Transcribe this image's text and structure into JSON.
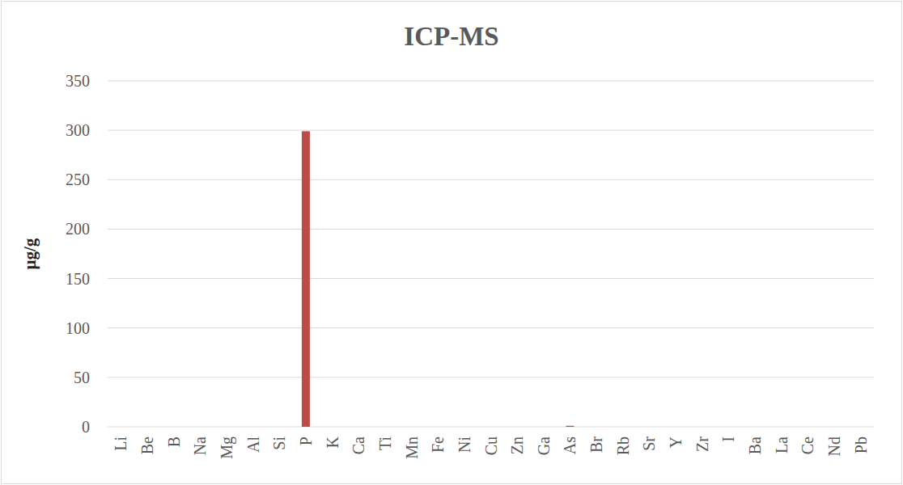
{
  "chart_data": {
    "type": "bar",
    "title": "ICP-MS",
    "y_label": "μg/g",
    "categories": [
      "Li",
      "Be",
      "B",
      "Na",
      "Mg",
      "Al",
      "Si",
      "P",
      "K",
      "Ca",
      "Ti",
      "Mn",
      "Fe",
      "Ni",
      "Cu",
      "Zn",
      "Ga",
      "As",
      "Br",
      "Rb",
      "Sr",
      "Y",
      "Zr",
      "I",
      "Ba",
      "La",
      "Ce",
      "Nd",
      "Pb"
    ],
    "values": [
      0,
      0,
      0,
      0,
      0,
      0,
      0,
      299,
      0,
      0,
      0,
      0,
      0,
      0,
      0,
      0,
      0,
      1,
      0,
      0,
      0,
      0,
      0,
      0,
      0,
      0,
      0,
      0,
      0
    ],
    "color": "#be4b48",
    "ylim": [
      0,
      350
    ],
    "yticks": [
      0,
      50,
      100,
      150,
      200,
      250,
      300,
      350
    ],
    "grid": true
  }
}
